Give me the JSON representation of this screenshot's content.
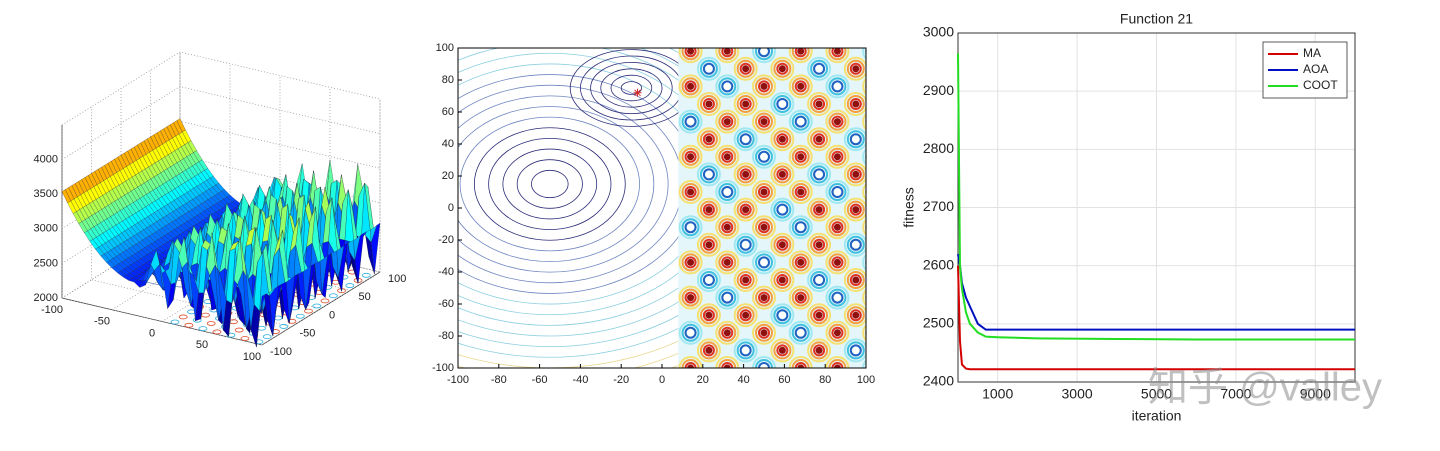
{
  "chart_data": [
    {
      "type": "surface3d",
      "xlim": [
        -100,
        100
      ],
      "ylim": [
        -100,
        100
      ],
      "zlim": [
        2000,
        4500
      ],
      "xticks": [
        -100,
        -50,
        0,
        50,
        100
      ],
      "yticks": [
        -100,
        -50,
        0,
        50,
        100
      ],
      "zticks": [
        2000,
        2500,
        3000,
        3500,
        4000
      ]
    },
    {
      "type": "contour",
      "xlim": [
        -100,
        100
      ],
      "ylim": [
        -100,
        100
      ],
      "xticks": [
        -100,
        -80,
        -60,
        -40,
        -20,
        0,
        20,
        40,
        60,
        80,
        100
      ],
      "yticks": [
        -100,
        -80,
        -60,
        -40,
        -20,
        0,
        20,
        40,
        60,
        80,
        100
      ],
      "marker": {
        "x": -12,
        "y": 72,
        "color": "#d62728"
      }
    },
    {
      "type": "line",
      "title": "Function 21",
      "x_label": "iteration",
      "y_label": "fitness",
      "x": [
        0,
        50,
        100,
        200,
        300,
        500,
        700,
        1000,
        2000,
        4000,
        6000,
        8000,
        10000
      ],
      "series": [
        {
          "name": "MA",
          "color": "#d40000",
          "values": [
            2600,
            2470,
            2430,
            2423,
            2422,
            2422,
            2422,
            2422,
            2422,
            2422,
            2422,
            2422,
            2422
          ]
        },
        {
          "name": "AOA",
          "color": "#0010c0",
          "values": [
            2620,
            2600,
            2570,
            2545,
            2530,
            2500,
            2490,
            2490,
            2490,
            2490,
            2490,
            2490,
            2490
          ]
        },
        {
          "name": "COOT",
          "color": "#22dd22",
          "values": [
            2965,
            2600,
            2560,
            2520,
            2500,
            2485,
            2478,
            2477,
            2475,
            2474,
            2473,
            2473,
            2473
          ]
        }
      ],
      "xlim": [
        0,
        10000
      ],
      "ylim": [
        2400,
        3000
      ],
      "xticks": [
        1000,
        3000,
        5000,
        7000,
        9000
      ],
      "yticks": [
        2400,
        2500,
        2600,
        2700,
        2800,
        2900,
        3000
      ],
      "grid": true,
      "legend": "upper right",
      "watermark": "知乎 @valley"
    }
  ]
}
